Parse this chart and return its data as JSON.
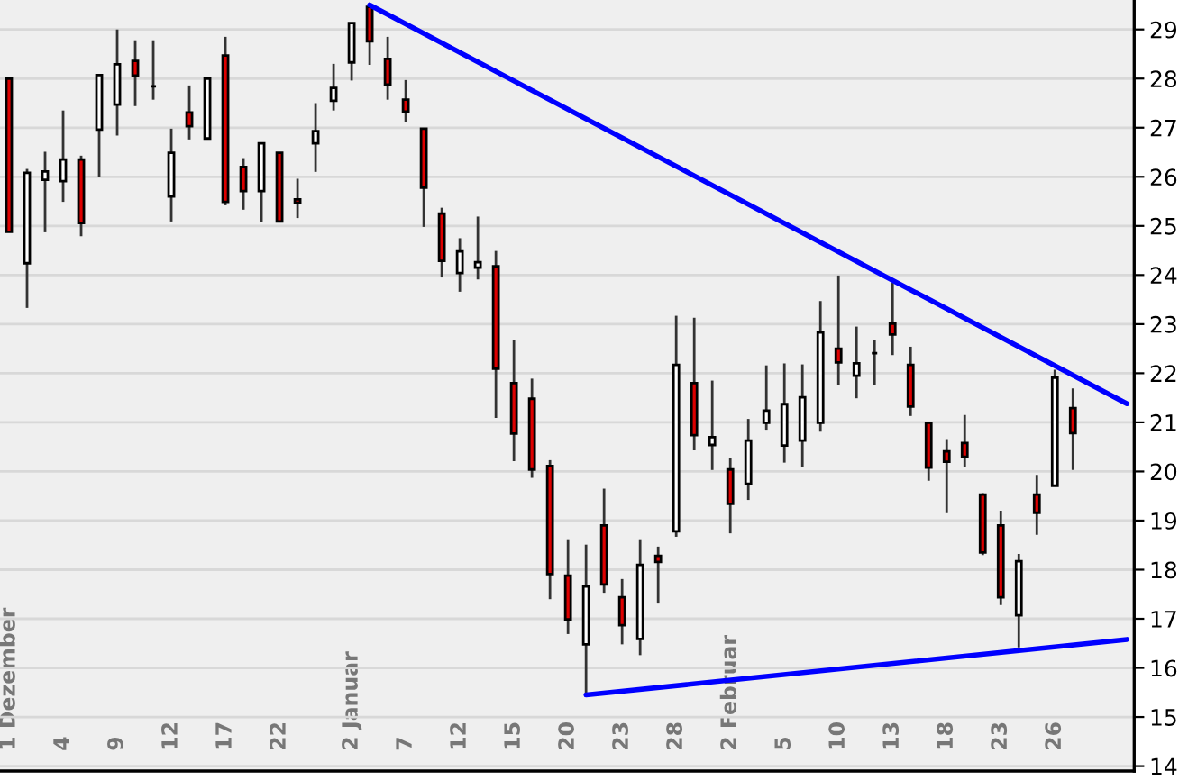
{
  "chart_data": {
    "type": "candlestick",
    "categories": [
      "1 Dezember",
      null,
      null,
      "4",
      null,
      null,
      "9",
      null,
      null,
      "12",
      null,
      null,
      "17",
      null,
      null,
      "22",
      null,
      null,
      null,
      "2 Januar",
      null,
      null,
      "7",
      null,
      null,
      "12",
      null,
      null,
      "15",
      null,
      null,
      "20",
      null,
      null,
      "23",
      null,
      null,
      "28",
      null,
      null,
      "2 Februar",
      null,
      null,
      "5",
      null,
      null,
      "10",
      null,
      null,
      "13",
      null,
      null,
      "18",
      null,
      null,
      "23",
      null,
      null,
      "26",
      null,
      null,
      null,
      null
    ],
    "ohlc": [
      [
        28.0,
        28.0,
        24.88,
        24.88
      ],
      [
        24.24,
        26.16,
        23.33,
        26.08
      ],
      [
        25.94,
        26.51,
        24.87,
        26.11
      ],
      [
        25.91,
        27.35,
        25.49,
        26.35
      ],
      [
        26.35,
        26.43,
        24.79,
        25.06
      ],
      [
        26.96,
        28.07,
        26.0,
        28.07
      ],
      [
        27.47,
        29.0,
        26.84,
        28.29
      ],
      [
        28.36,
        28.78,
        27.44,
        28.06
      ],
      [
        27.84,
        28.78,
        27.57,
        27.84
      ],
      [
        25.6,
        26.98,
        25.09,
        26.49
      ],
      [
        27.31,
        27.86,
        26.76,
        27.03
      ],
      [
        26.78,
        28.0,
        26.78,
        28.0
      ],
      [
        28.47,
        28.85,
        25.42,
        25.49
      ],
      [
        26.2,
        26.38,
        25.33,
        25.71
      ],
      [
        25.71,
        26.68,
        25.08,
        26.68
      ],
      [
        26.49,
        26.49,
        25.09,
        25.09
      ],
      [
        25.54,
        25.96,
        25.16,
        25.47
      ],
      [
        26.68,
        27.5,
        26.1,
        26.93
      ],
      [
        27.55,
        28.3,
        27.35,
        27.81
      ],
      [
        28.33,
        29.13,
        27.96,
        29.13
      ],
      [
        29.46,
        29.5,
        28.28,
        28.76
      ],
      [
        28.4,
        28.85,
        27.57,
        27.88
      ],
      [
        27.57,
        27.97,
        27.11,
        27.33
      ],
      [
        26.98,
        26.98,
        24.98,
        25.78
      ],
      [
        25.25,
        25.37,
        23.95,
        24.29
      ],
      [
        24.04,
        24.75,
        23.66,
        24.48
      ],
      [
        24.15,
        25.19,
        23.91,
        24.26
      ],
      [
        24.18,
        24.49,
        21.09,
        22.09
      ],
      [
        21.8,
        22.68,
        20.21,
        20.77
      ],
      [
        21.48,
        21.89,
        19.87,
        20.04
      ],
      [
        20.11,
        20.23,
        17.4,
        17.91
      ],
      [
        17.88,
        18.62,
        16.69,
        16.99
      ],
      [
        16.48,
        18.51,
        15.44,
        17.66
      ],
      [
        18.9,
        19.65,
        17.53,
        17.7
      ],
      [
        17.44,
        17.81,
        16.48,
        16.87
      ],
      [
        16.59,
        18.62,
        16.26,
        18.1
      ],
      [
        18.28,
        18.47,
        17.31,
        18.16
      ],
      [
        18.78,
        23.17,
        18.67,
        22.17
      ],
      [
        21.8,
        23.13,
        20.43,
        20.74
      ],
      [
        20.54,
        21.85,
        20.03,
        20.7
      ],
      [
        20.04,
        20.27,
        18.74,
        19.34
      ],
      [
        19.75,
        21.07,
        19.42,
        20.63
      ],
      [
        20.99,
        22.16,
        20.85,
        21.24
      ],
      [
        20.53,
        22.2,
        20.18,
        21.37
      ],
      [
        20.63,
        22.18,
        20.1,
        21.51
      ],
      [
        20.99,
        23.47,
        20.81,
        22.83
      ],
      [
        22.5,
        23.99,
        21.76,
        22.22
      ],
      [
        21.95,
        22.95,
        21.49,
        22.2
      ],
      [
        22.41,
        22.68,
        21.76,
        22.41
      ],
      [
        23.01,
        23.84,
        22.37,
        22.79
      ],
      [
        22.17,
        22.54,
        21.13,
        21.32
      ],
      [
        20.99,
        20.99,
        19.81,
        20.08
      ],
      [
        20.41,
        20.66,
        19.15,
        20.2
      ],
      [
        20.58,
        21.15,
        20.1,
        20.3
      ],
      [
        19.53,
        19.56,
        18.3,
        18.35
      ],
      [
        18.9,
        19.2,
        17.28,
        17.44
      ],
      [
        17.07,
        18.32,
        16.42,
        18.17
      ],
      [
        19.53,
        19.93,
        18.71,
        19.16
      ],
      [
        19.71,
        22.07,
        19.71,
        21.91
      ],
      [
        21.29,
        21.69,
        20.03,
        20.78
      ],
      null,
      null,
      null
    ],
    "series": [
      {
        "type": "line",
        "color": "#0000ff",
        "values": [
          null,
          null,
          null,
          null,
          null,
          null,
          null,
          null,
          null,
          null,
          null,
          null,
          null,
          null,
          null,
          null,
          null,
          null,
          null,
          null,
          29.5,
          null,
          null,
          null,
          null,
          null,
          null,
          null,
          null,
          null,
          null,
          null,
          null,
          null,
          null,
          null,
          null,
          null,
          null,
          null,
          null,
          null,
          null,
          null,
          null,
          null,
          null,
          null,
          null,
          null,
          null,
          null,
          null,
          null,
          null,
          null,
          null,
          null,
          null,
          null,
          null,
          null,
          21.38
        ]
      },
      {
        "type": "line",
        "color": "#0000ff",
        "values": [
          null,
          null,
          null,
          null,
          null,
          null,
          null,
          null,
          null,
          null,
          null,
          null,
          null,
          null,
          null,
          null,
          null,
          null,
          null,
          null,
          null,
          null,
          null,
          null,
          null,
          null,
          null,
          null,
          null,
          null,
          null,
          null,
          15.45,
          null,
          null,
          null,
          null,
          null,
          null,
          null,
          null,
          null,
          null,
          null,
          null,
          null,
          null,
          null,
          null,
          null,
          null,
          null,
          null,
          null,
          null,
          null,
          null,
          null,
          null,
          null,
          null,
          null,
          16.58
        ]
      }
    ],
    "ylim": [
      13.9,
      29.6
    ],
    "yticks": [
      14,
      15,
      16,
      17,
      18,
      19,
      20,
      21,
      22,
      23,
      24,
      25,
      26,
      27,
      28,
      29
    ],
    "grid": "y",
    "line_style": "solid"
  }
}
